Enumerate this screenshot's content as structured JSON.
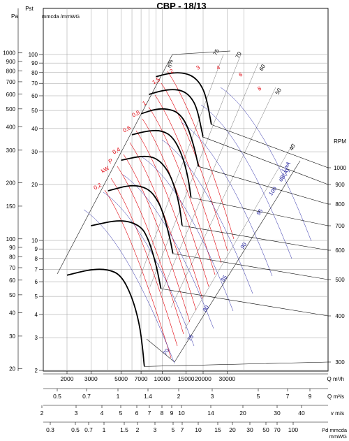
{
  "chart_data": {
    "type": "line",
    "title": "CBP - 18/13",
    "left_axis": {
      "pa_label": "Pa",
      "pst_label": "Pst",
      "mm_label": "mmcda /mmWG",
      "pa_ticks": [
        "1000",
        "900",
        "800",
        "700",
        "600",
        "500",
        "400",
        "300",
        "200",
        "150",
        "100",
        "90",
        "80",
        "70",
        "60",
        "50",
        "40",
        "30",
        "20"
      ],
      "mm_ticks": [
        "100",
        "90",
        "80",
        "70",
        "60",
        "50",
        "40",
        "30",
        "20",
        "10",
        "9",
        "8",
        "7",
        "6",
        "5",
        "4",
        "3",
        "2"
      ]
    },
    "right_axis": {
      "label": "RPM",
      "ticks": [
        "1000",
        "900",
        "800",
        "700",
        "600",
        "500",
        "400",
        "300"
      ]
    },
    "q_m3h": {
      "label": "Q m³/h",
      "ticks": [
        "2000",
        "3000",
        "5000",
        "7000",
        "10000",
        "15000",
        "20000",
        "30000"
      ]
    },
    "q_m3s": {
      "label": "Q m³/s",
      "ticks": [
        "0.5",
        "0.7",
        "1",
        "1.4",
        "2",
        "3",
        "5",
        "7",
        "9"
      ]
    },
    "v_ms": {
      "label": "v m/s",
      "ticks": [
        "2",
        "3",
        "4",
        "5",
        "6",
        "7",
        "8",
        "9",
        "10",
        "14",
        "20",
        "30",
        "40"
      ]
    },
    "pd": {
      "label": "Pd mmcda",
      "label2": "mmWG",
      "ticks": [
        "0.3",
        "0.5",
        "0.7",
        "1",
        "1.5",
        "2",
        "3",
        "5",
        "7",
        "10",
        "15",
        "20",
        "30",
        "50",
        "70",
        "100"
      ]
    },
    "efficiency_label": "η%",
    "efficiency_values": [
      "75",
      "70",
      "60",
      "50",
      "40"
    ],
    "power_label": "P",
    "power_unit": "kW",
    "power_values": [
      "2",
      "3",
      "4",
      "6",
      "8",
      "1,5",
      "1",
      "0,8",
      "0,6",
      "0,4",
      "0,2"
    ],
    "noise_label": "LwA",
    "noise_unit": "dB(A)",
    "noise_values": [
      "100",
      "95",
      "90",
      "85",
      "80",
      "75",
      "70"
    ],
    "series": [
      {
        "rpm": 1000,
        "q_m3h": [
          9000,
          11000,
          13000,
          15000,
          17000,
          19000,
          21000,
          23000
        ],
        "pst_mm": [
          76,
          79,
          80,
          79,
          76,
          70,
          60,
          42
        ]
      },
      {
        "rpm": 900,
        "q_m3h": [
          8000,
          10000,
          12000,
          14000,
          16000,
          18000,
          20000
        ],
        "pst_mm": [
          61,
          64,
          65,
          64,
          60,
          52,
          36
        ]
      },
      {
        "rpm": 800,
        "q_m3h": [
          7000,
          9000,
          11000,
          13000,
          15000,
          17000,
          18500
        ],
        "pst_mm": [
          48,
          51,
          51,
          49,
          43,
          33,
          25
        ]
      },
      {
        "rpm": 700,
        "q_m3h": [
          6000,
          8000,
          10000,
          12000,
          14000,
          15500,
          16300
        ],
        "pst_mm": [
          37,
          39,
          39,
          36,
          29,
          22,
          17
        ]
      },
      {
        "rpm": 600,
        "q_m3h": [
          5000,
          7000,
          9000,
          11000,
          12500,
          13500,
          14000
        ],
        "pst_mm": [
          27,
          28.5,
          28,
          24,
          19,
          15,
          12
        ]
      },
      {
        "rpm": 500,
        "q_m3h": [
          4000,
          6000,
          8000,
          9500,
          10500,
          11500,
          12000
        ],
        "pst_mm": [
          18.5,
          20,
          19,
          16,
          13,
          10,
          8.5
        ]
      },
      {
        "rpm": 400,
        "q_m3h": [
          3000,
          5000,
          7000,
          8000,
          9000,
          9800
        ],
        "pst_mm": [
          12,
          13,
          12,
          10,
          7.5,
          5.5
        ]
      },
      {
        "rpm": 300,
        "q_m3h": [
          2000,
          3000,
          4000,
          5000,
          6000,
          6800,
          7200,
          7400
        ],
        "pst_mm": [
          6.5,
          7,
          7,
          6.5,
          5,
          3.6,
          2.6,
          2.1
        ]
      }
    ],
    "xlim": [
      1500,
      45000
    ],
    "ylim_mm": [
      2,
      110
    ],
    "xscale": "log",
    "yscale": "log",
    "grid": true
  }
}
